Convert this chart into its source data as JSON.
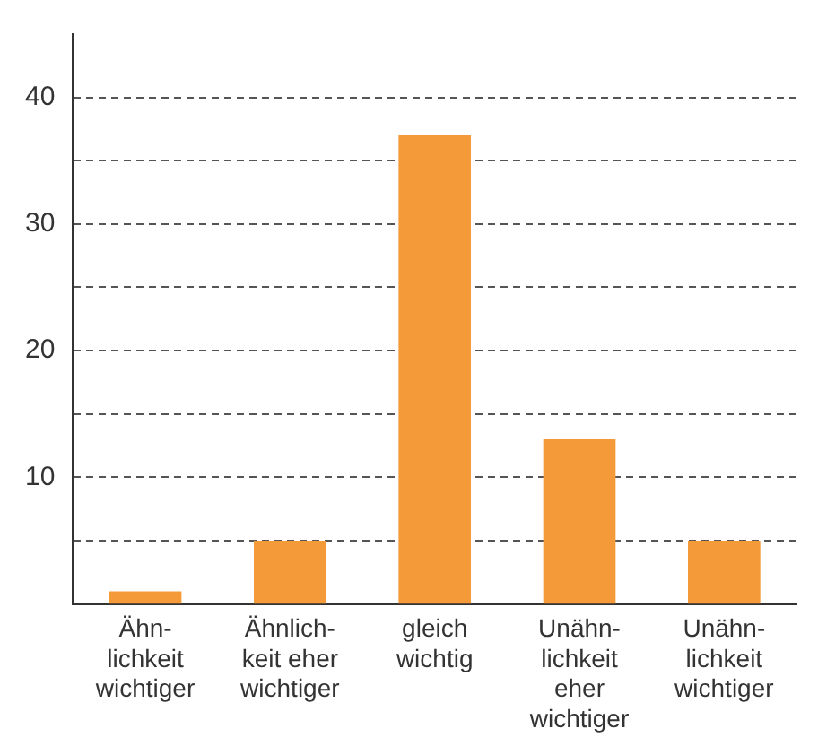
{
  "chart_data": {
    "type": "bar",
    "categories": [
      "Ähn-\nlichkeit\nwichtiger",
      "Ähnlich-\nkeit eher\nwichtiger",
      "gleich\nwichtig",
      "Unähn-\nlichkeit\neher\nwichtiger",
      "Unähn-\nlichkeit\nwichtiger"
    ],
    "values": [
      1,
      5,
      37,
      13,
      5
    ],
    "color": "#f59a38",
    "ylim": [
      0,
      45
    ],
    "yticks": [
      {
        "value": 5,
        "label": null
      },
      10,
      {
        "value": 15,
        "label": null
      },
      20,
      {
        "value": 25,
        "label": null
      },
      30,
      {
        "value": 35,
        "label": null
      },
      40
    ],
    "grid": "y",
    "legend": false
  }
}
